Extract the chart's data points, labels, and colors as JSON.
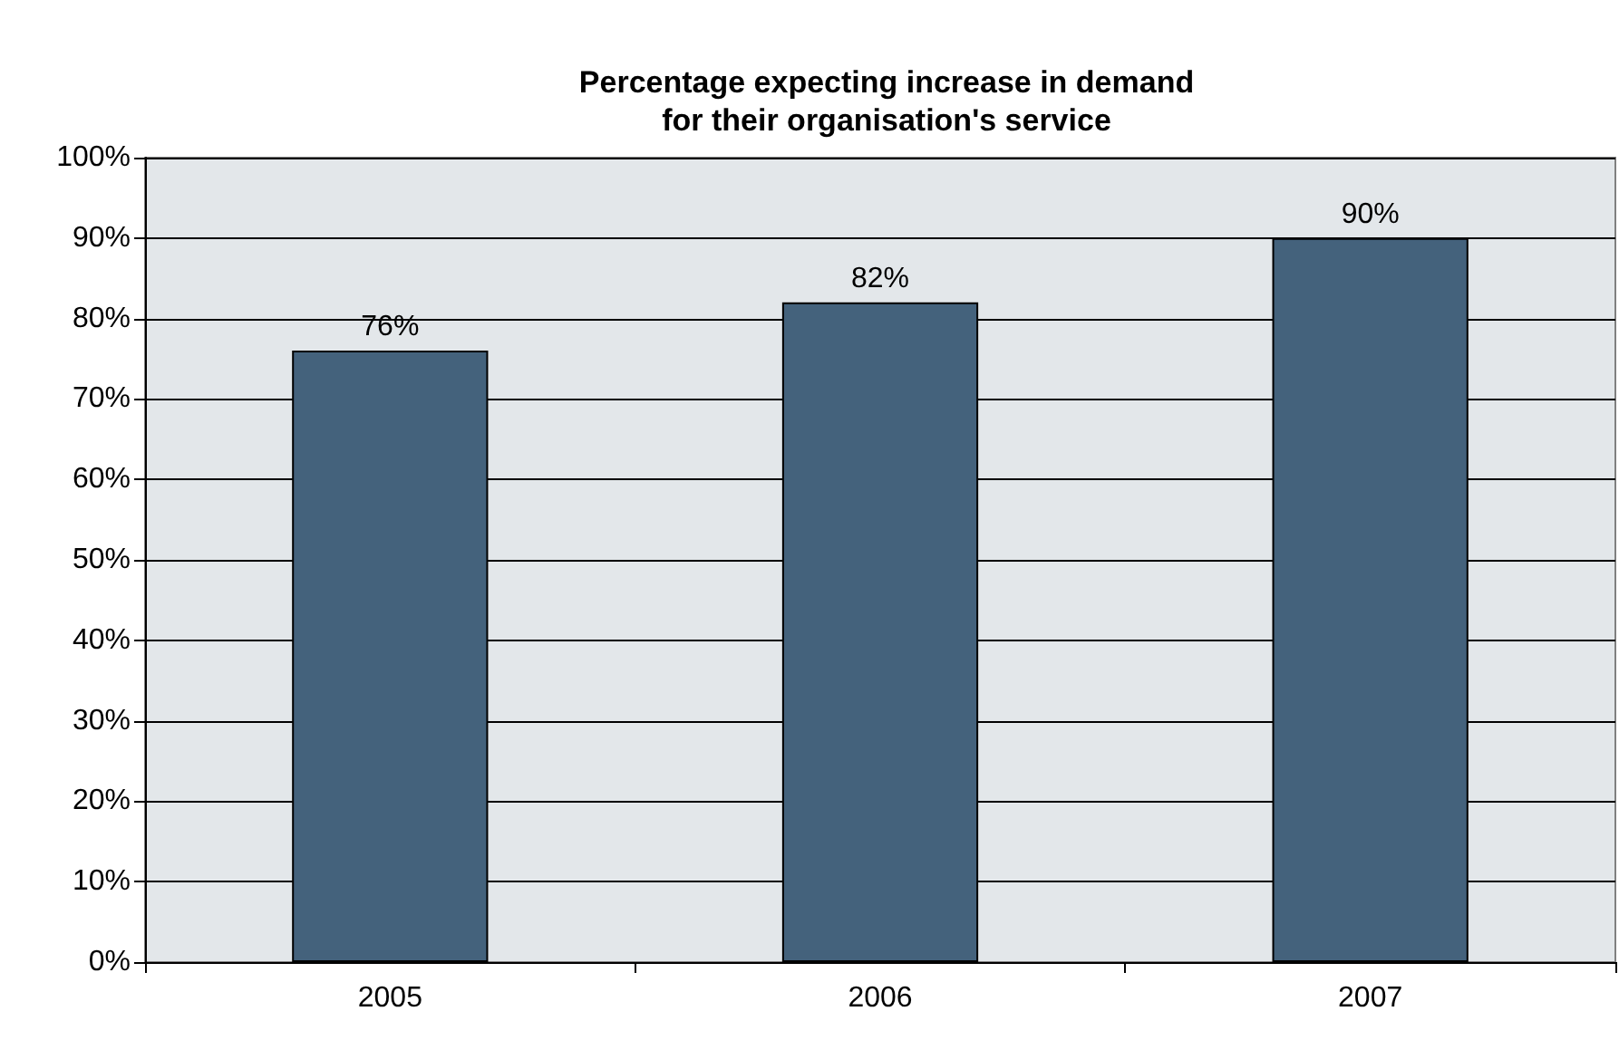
{
  "chart_data": {
    "type": "bar",
    "title": "Percentage expecting increase in demand\nfor their organisation's service",
    "categories": [
      "2005",
      "2006",
      "2007"
    ],
    "values": [
      76,
      82,
      90
    ],
    "color": "#44627c",
    "value_labels": [
      "76%",
      "82%",
      "90%"
    ],
    "ylim": [
      0,
      100
    ],
    "yticks": [
      {
        "value": 0,
        "label": "0%"
      },
      {
        "value": 10,
        "label": "10%"
      },
      {
        "value": 20,
        "label": "20%"
      },
      {
        "value": 30,
        "label": "30%"
      },
      {
        "value": 40,
        "label": "40%"
      },
      {
        "value": 50,
        "label": "50%"
      },
      {
        "value": 60,
        "label": "60%"
      },
      {
        "value": 70,
        "label": "70%"
      },
      {
        "value": 80,
        "label": "80%"
      },
      {
        "value": 90,
        "label": "90%"
      },
      {
        "value": 100,
        "label": "100%"
      }
    ],
    "grid": "y"
  }
}
